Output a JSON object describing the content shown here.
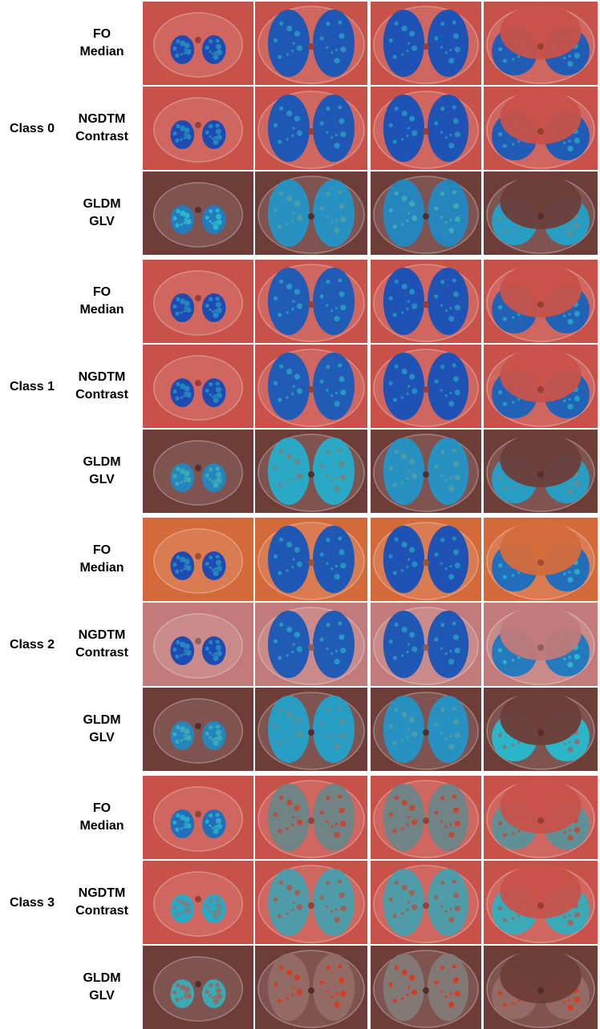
{
  "figure": {
    "groups": [
      {
        "class_label": "Class 0",
        "rows": [
          {
            "line1": "FO",
            "line2": "Median",
            "palette": "red",
            "intensity": [
              0.05,
              0.1,
              0.08,
              0.12
            ]
          },
          {
            "line1": "NGDTM",
            "line2": "Contrast",
            "palette": "red",
            "intensity": [
              0.05,
              0.1,
              0.08,
              0.12
            ]
          },
          {
            "line1": "GLDM",
            "line2": "GLV",
            "palette": "dark",
            "intensity": [
              0.25,
              0.35,
              0.3,
              0.4
            ]
          }
        ]
      },
      {
        "class_label": "Class 1",
        "rows": [
          {
            "line1": "FO",
            "line2": "Median",
            "palette": "red",
            "intensity": [
              0.05,
              0.12,
              0.08,
              0.15
            ]
          },
          {
            "line1": "NGDTM",
            "line2": "Contrast",
            "palette": "red",
            "intensity": [
              0.05,
              0.12,
              0.08,
              0.15
            ]
          },
          {
            "line1": "GLDM",
            "line2": "GLV",
            "palette": "dark",
            "intensity": [
              0.3,
              0.45,
              0.35,
              0.4
            ]
          }
        ]
      },
      {
        "class_label": "Class 2",
        "rows": [
          {
            "line1": "FO",
            "line2": "Median",
            "palette": "orange",
            "intensity": [
              0.05,
              0.1,
              0.08,
              0.2
            ]
          },
          {
            "line1": "NGDTM",
            "line2": "Contrast",
            "palette": "pink",
            "intensity": [
              0.05,
              0.12,
              0.1,
              0.25
            ]
          },
          {
            "line1": "GLDM",
            "line2": "GLV",
            "palette": "dark",
            "intensity": [
              0.3,
              0.4,
              0.35,
              0.5
            ]
          }
        ]
      },
      {
        "class_label": "Class 3",
        "rows": [
          {
            "line1": "FO",
            "line2": "Median",
            "palette": "red",
            "intensity": [
              0.2,
              0.7,
              0.7,
              0.65
            ]
          },
          {
            "line1": "NGDTM",
            "line2": "Contrast",
            "palette": "red",
            "intensity": [
              0.45,
              0.6,
              0.6,
              0.55
            ]
          },
          {
            "line1": "GLDM",
            "line2": "GLV",
            "palette": "dark",
            "intensity": [
              0.55,
              0.8,
              0.75,
              0.8
            ]
          }
        ]
      }
    ],
    "colors": {
      "red": "#c8524a",
      "orange": "#d46a3a",
      "pink": "#c27a7a",
      "dark": "#6e3d38",
      "lung_low": "#1c3fb0",
      "lung_mid": "#2bb5c8",
      "lung_high": "#d83a22"
    }
  }
}
